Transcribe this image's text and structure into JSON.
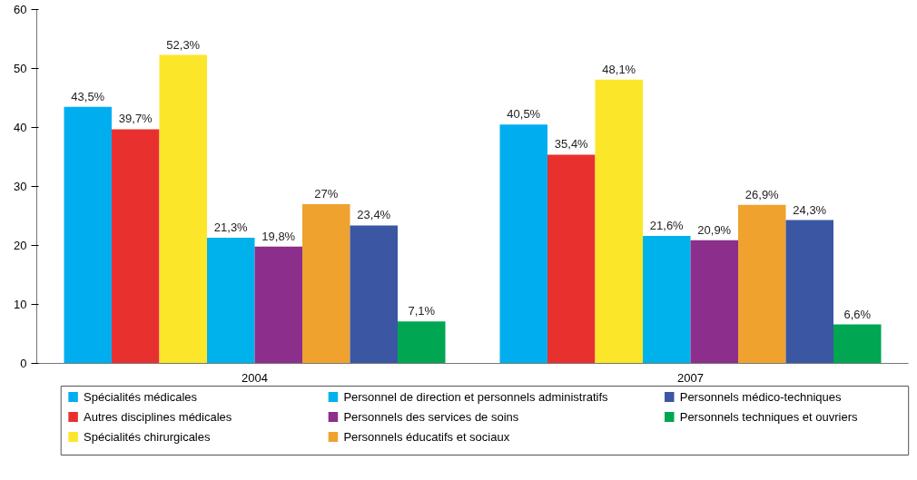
{
  "chart_data": {
    "type": "bar",
    "categories": [
      "2004",
      "2007"
    ],
    "ylim": [
      0,
      60
    ],
    "yticks": [
      0,
      10,
      20,
      30,
      40,
      50,
      60
    ],
    "grid": false,
    "legend": "bottom",
    "series": [
      {
        "name": "Spécialités médicales",
        "color": "#00aeef",
        "values": [
          43.5,
          40.5
        ],
        "value_labels": [
          "43,5%",
          "40,5%"
        ]
      },
      {
        "name": "Autres disciplines médicales",
        "color": "#e8312f",
        "values": [
          39.7,
          35.4
        ],
        "value_labels": [
          "39,7%",
          "35,4%"
        ]
      },
      {
        "name": "Spécialités chirurgicales",
        "color": "#fbe62a",
        "values": [
          52.3,
          48.1
        ],
        "value_labels": [
          "52,3%",
          "48,1%"
        ]
      },
      {
        "name": "Personnel de direction et personnels administratifs",
        "color": "#00b2ec",
        "values": [
          21.3,
          21.6
        ],
        "value_labels": [
          "21,3%",
          "21,6%"
        ]
      },
      {
        "name": "Personnels des services de soins",
        "color": "#8c2e8c",
        "values": [
          19.8,
          20.9
        ],
        "value_labels": [
          "19,8%",
          "20,9%"
        ]
      },
      {
        "name": "Personnels éducatifs et sociaux",
        "color": "#f0a22e",
        "values": [
          27,
          26.9
        ],
        "value_labels": [
          "27%",
          "26,9%"
        ]
      },
      {
        "name": "Personnels médico-techniques",
        "color": "#3b56a3",
        "values": [
          23.4,
          24.3
        ],
        "value_labels": [
          "23,4%",
          "24,3%"
        ]
      },
      {
        "name": "Personnels techniques et ouvriers",
        "color": "#00a651",
        "values": [
          7.1,
          6.6
        ],
        "value_labels": [
          "7,1%",
          "6,6%"
        ]
      }
    ]
  }
}
